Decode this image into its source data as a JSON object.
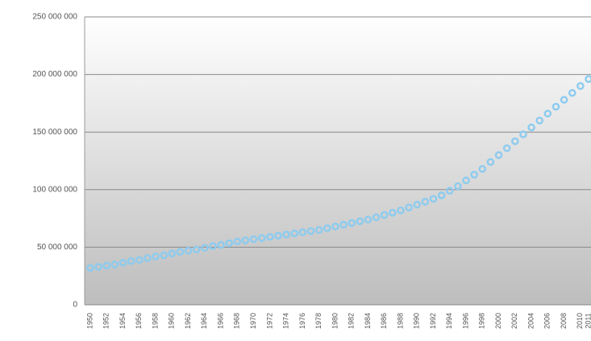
{
  "chart_data": {
    "type": "scatter",
    "categories": [
      "1950",
      null,
      "1952",
      null,
      "1954",
      null,
      "1956",
      null,
      "1958",
      null,
      "1960",
      null,
      "1962",
      null,
      "1964",
      null,
      "1966",
      null,
      "1968",
      null,
      "1970",
      null,
      "1972",
      null,
      "1974",
      null,
      "1976",
      null,
      "1978",
      null,
      "1980",
      null,
      "1982",
      null,
      "1984",
      null,
      "1986",
      null,
      "1988",
      null,
      "1990",
      null,
      "1992",
      null,
      "1994",
      null,
      "1996",
      null,
      "1998",
      null,
      "2000",
      null,
      "2002",
      null,
      "2004",
      null,
      "2006",
      null,
      "2008",
      null,
      "2010",
      "2011"
    ],
    "values": [
      32000000,
      33000000,
      34000000,
      35000000,
      36500000,
      38000000,
      39000000,
      40500000,
      42000000,
      43000000,
      44500000,
      46000000,
      47000000,
      48000000,
      49500000,
      51000000,
      52000000,
      53500000,
      55000000,
      56000000,
      57000000,
      58000000,
      59000000,
      60000000,
      61000000,
      62000000,
      63000000,
      64000000,
      65000000,
      66500000,
      68000000,
      69500000,
      71000000,
      72500000,
      74000000,
      76000000,
      78000000,
      80000000,
      82000000,
      84500000,
      87000000,
      89500000,
      92000000,
      95000000,
      99000000,
      103000000,
      108000000,
      113000000,
      118000000,
      124000000,
      130000000,
      136000000,
      142000000,
      148000000,
      154000000,
      160000000,
      166000000,
      172000000,
      178000000,
      184000000,
      190000000,
      196000000
    ],
    "color": "#8ccbef",
    "ylim": [
      0,
      250000000
    ],
    "yticks": [
      0,
      {
        "value": 50000000,
        "label": "50 000 000"
      },
      {
        "value": 100000000,
        "label": "100 000 000"
      },
      {
        "value": 150000000,
        "label": "150 000 000"
      },
      {
        "value": 200000000,
        "label": "200 000 000"
      },
      {
        "value": 250000000,
        "label": "250 000 000"
      }
    ],
    "grid": true
  }
}
